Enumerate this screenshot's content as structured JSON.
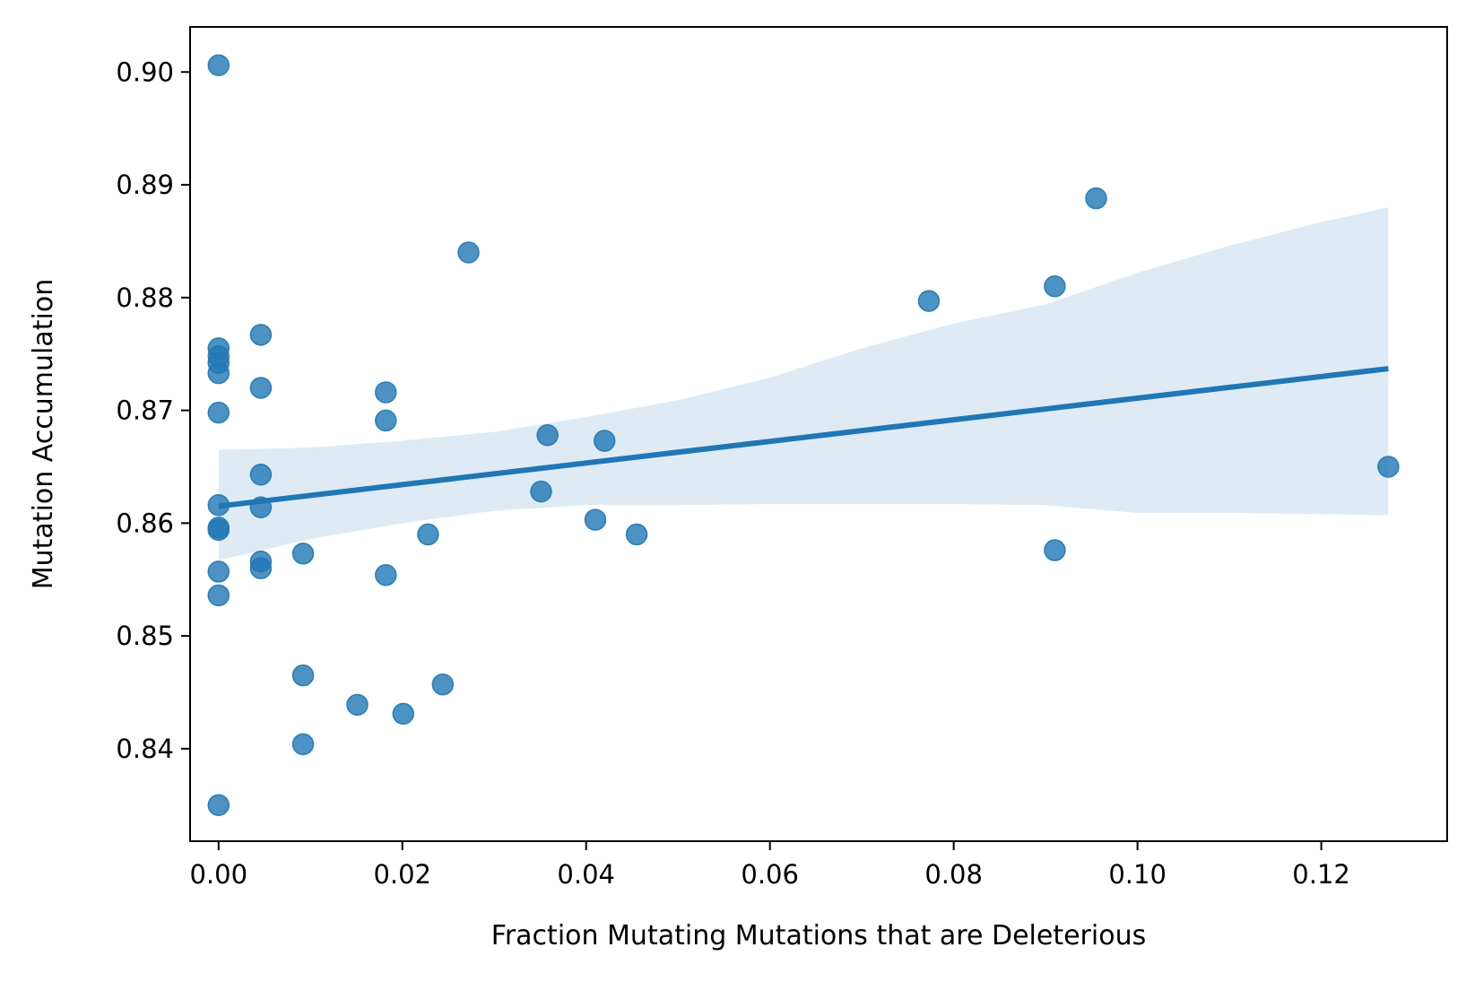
{
  "chart_data": {
    "type": "scatter",
    "title": "",
    "xlabel": "Fraction Mutating Mutations that are Deleterious",
    "ylabel": "Mutation Accumulation",
    "xlim": [
      -0.0031,
      0.1337
    ],
    "ylim": [
      0.8318,
      0.904
    ],
    "xticks": [
      0.0,
      0.02,
      0.04,
      0.06,
      0.08,
      0.1,
      0.12
    ],
    "xtick_labels": [
      "0.00",
      "0.02",
      "0.04",
      "0.06",
      "0.08",
      "0.10",
      "0.12"
    ],
    "yticks": [
      0.84,
      0.85,
      0.86,
      0.87,
      0.88,
      0.89,
      0.9
    ],
    "ytick_labels": [
      "0.84",
      "0.85",
      "0.86",
      "0.87",
      "0.88",
      "0.89",
      "0.90"
    ],
    "grid": false,
    "colors": {
      "points": "#1f77b4",
      "line": "#1f77b4",
      "band": "#1f77b4"
    },
    "points": [
      {
        "x": 0.0,
        "y": 0.9006
      },
      {
        "x": 0.0,
        "y": 0.8755
      },
      {
        "x": 0.0,
        "y": 0.8748
      },
      {
        "x": 0.0,
        "y": 0.8742
      },
      {
        "x": 0.0,
        "y": 0.8733
      },
      {
        "x": 0.0,
        "y": 0.8698
      },
      {
        "x": 0.0,
        "y": 0.8616
      },
      {
        "x": 0.0,
        "y": 0.8596
      },
      {
        "x": 0.0,
        "y": 0.8594
      },
      {
        "x": 0.0,
        "y": 0.8557
      },
      {
        "x": 0.0,
        "y": 0.8536
      },
      {
        "x": 0.0,
        "y": 0.835
      },
      {
        "x": 0.0046,
        "y": 0.8767
      },
      {
        "x": 0.0046,
        "y": 0.872
      },
      {
        "x": 0.0046,
        "y": 0.8643
      },
      {
        "x": 0.0046,
        "y": 0.8614
      },
      {
        "x": 0.0046,
        "y": 0.8566
      },
      {
        "x": 0.0046,
        "y": 0.856
      },
      {
        "x": 0.0092,
        "y": 0.8573
      },
      {
        "x": 0.0092,
        "y": 0.8465
      },
      {
        "x": 0.0092,
        "y": 0.8404
      },
      {
        "x": 0.0151,
        "y": 0.8439
      },
      {
        "x": 0.0182,
        "y": 0.8716
      },
      {
        "x": 0.0182,
        "y": 0.8691
      },
      {
        "x": 0.0182,
        "y": 0.8554
      },
      {
        "x": 0.0201,
        "y": 0.8431
      },
      {
        "x": 0.0228,
        "y": 0.859
      },
      {
        "x": 0.0244,
        "y": 0.8457
      },
      {
        "x": 0.0272,
        "y": 0.884
      },
      {
        "x": 0.0351,
        "y": 0.8628
      },
      {
        "x": 0.0358,
        "y": 0.8678
      },
      {
        "x": 0.041,
        "y": 0.8603
      },
      {
        "x": 0.042,
        "y": 0.8673
      },
      {
        "x": 0.0455,
        "y": 0.859
      },
      {
        "x": 0.0773,
        "y": 0.8797
      },
      {
        "x": 0.091,
        "y": 0.881
      },
      {
        "x": 0.091,
        "y": 0.8576
      },
      {
        "x": 0.0955,
        "y": 0.8888
      },
      {
        "x": 0.1273,
        "y": 0.865
      }
    ],
    "regression_line": {
      "x": [
        0.0,
        0.1273
      ],
      "y": [
        0.8615,
        0.8737
      ]
    },
    "confidence_band": {
      "x": [
        0.0,
        0.01,
        0.02,
        0.03,
        0.04,
        0.05,
        0.06,
        0.07,
        0.08,
        0.09,
        0.1,
        0.11,
        0.12,
        0.1273
      ],
      "upper": [
        0.8665,
        0.8667,
        0.8673,
        0.8681,
        0.8694,
        0.8709,
        0.8729,
        0.8755,
        0.8777,
        0.8794,
        0.8822,
        0.8846,
        0.8867,
        0.888
      ],
      "lower": [
        0.8567,
        0.8586,
        0.86,
        0.8611,
        0.8616,
        0.8616,
        0.8617,
        0.8617,
        0.8617,
        0.8616,
        0.8609,
        0.8609,
        0.8608,
        0.8607
      ]
    }
  }
}
